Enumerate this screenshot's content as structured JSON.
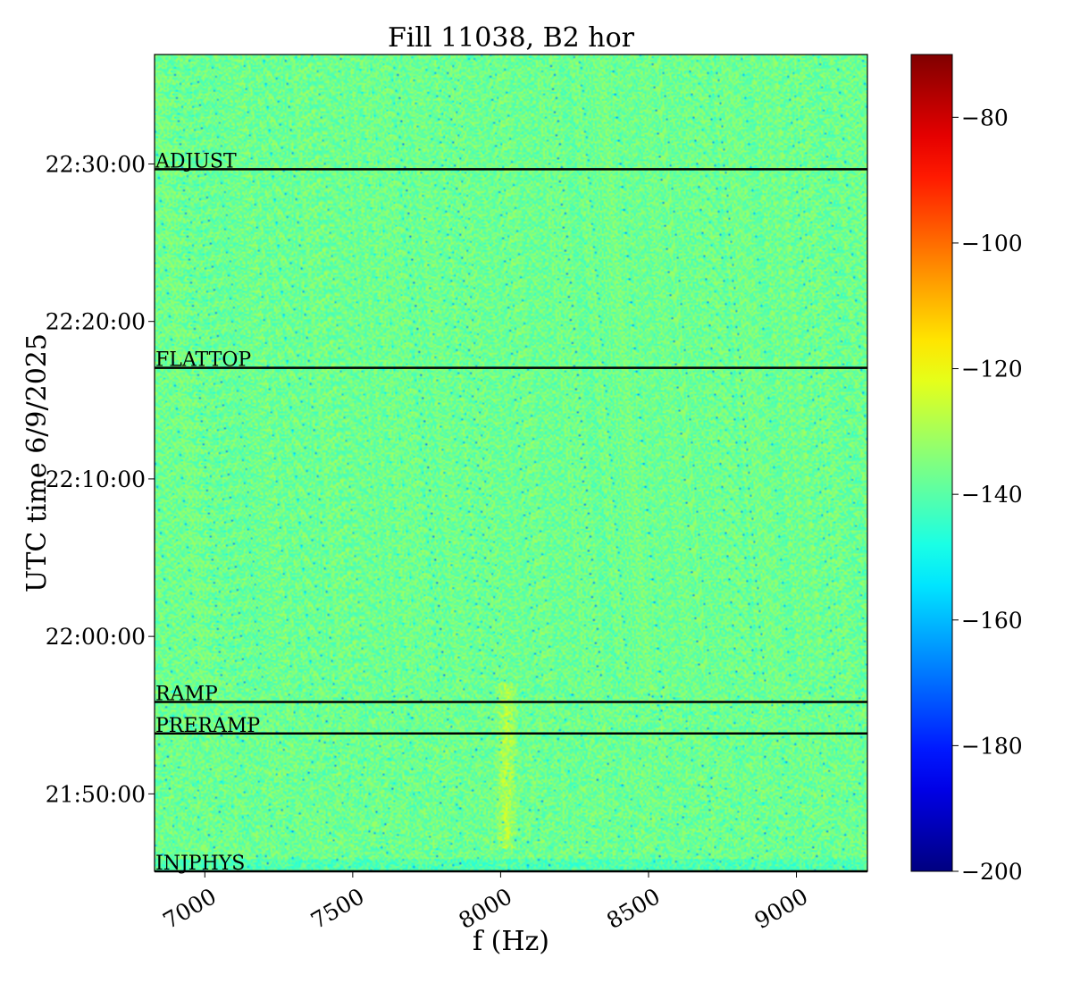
{
  "chart_data": {
    "type": "heatmap",
    "title": "Fill 11038, B2 hor",
    "xlabel": "f (Hz)",
    "ylabel": "UTC time 6/9/2025",
    "xlim": [
      6830,
      9240
    ],
    "ylim": [
      "21:45:05",
      "22:36:57"
    ],
    "x_ticks": [
      {
        "value": 7000,
        "label": "7000"
      },
      {
        "value": 7500,
        "label": "7500"
      },
      {
        "value": 8000,
        "label": "8000"
      },
      {
        "value": 8500,
        "label": "8500"
      },
      {
        "value": 9000,
        "label": "9000"
      }
    ],
    "y_ticks": [
      {
        "value": "21:50:00",
        "label": "21:50:00"
      },
      {
        "value": "22:00:00",
        "label": "22:00:00"
      },
      {
        "value": "22:10:00",
        "label": "22:10:00"
      },
      {
        "value": "22:20:00",
        "label": "22:20:00"
      },
      {
        "value": "22:30:00",
        "label": "22:30:00"
      }
    ],
    "phase_markers": [
      {
        "label": "INJPHYS",
        "time": "21:45:05"
      },
      {
        "label": "PRERAMP",
        "time": "21:53:50"
      },
      {
        "label": "RAMP",
        "time": "21:55:50"
      },
      {
        "label": "FLATTOP",
        "time": "22:17:03"
      },
      {
        "label": "ADJUST",
        "time": "22:29:40"
      }
    ],
    "colorbar": {
      "colormap": "jet",
      "range": [
        -200,
        -70
      ],
      "ticks": [
        {
          "value": -80,
          "label": "−80"
        },
        {
          "value": -100,
          "label": "−100"
        },
        {
          "value": -120,
          "label": "−120"
        },
        {
          "value": -140,
          "label": "−140"
        },
        {
          "value": -160,
          "label": "−160"
        },
        {
          "value": -180,
          "label": "−180"
        },
        {
          "value": -200,
          "label": "−200"
        }
      ]
    },
    "background_level": -137,
    "highlight": {
      "x": 8020,
      "t_range": [
        "21:46:30",
        "21:57:00"
      ],
      "level": -126
    }
  }
}
